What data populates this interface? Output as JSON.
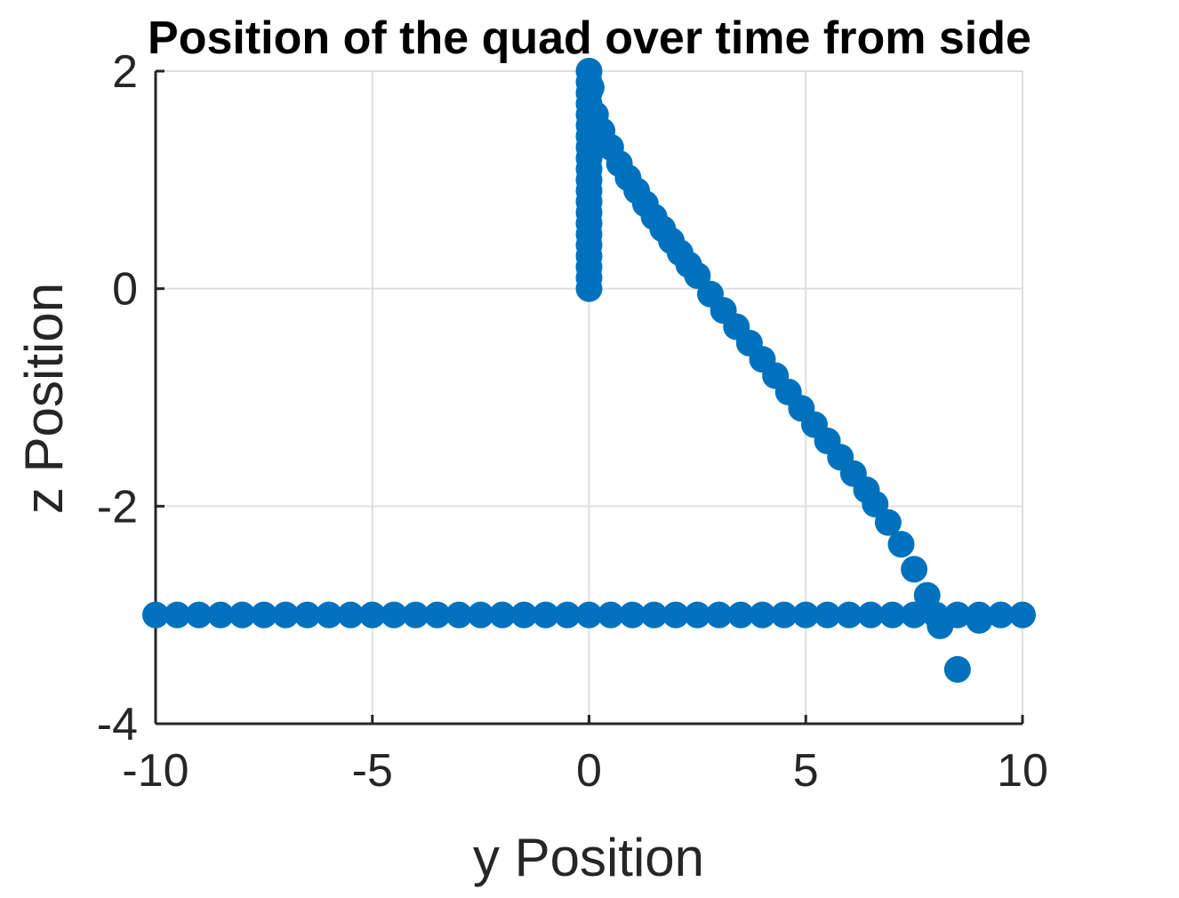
{
  "chart_data": {
    "type": "scatter",
    "title": "Position of the quad over time from side",
    "xlabel": "y Position",
    "ylabel": "z Position",
    "xlim": [
      -10,
      10
    ],
    "ylim": [
      -4,
      2
    ],
    "xticks": [
      -10,
      -5,
      0,
      5,
      10
    ],
    "yticks": [
      -4,
      -2,
      0,
      2
    ],
    "xtick_labels": [
      "-10",
      "-5",
      "0",
      "5",
      "10"
    ],
    "ytick_labels": [
      "-4",
      "-2",
      "0",
      "2"
    ],
    "grid": true,
    "marker_color": "#0072BD",
    "series": [
      {
        "x": [
          0,
          0,
          0,
          0,
          0,
          0,
          0,
          0,
          0,
          0,
          0,
          0,
          0,
          0,
          0,
          0,
          0,
          0,
          0,
          0,
          0,
          0.05,
          0.15,
          0.3,
          0.5,
          0.7,
          0.9,
          1.1,
          1.3,
          1.5,
          1.7,
          1.9,
          2.1,
          2.3,
          2.5,
          2.8,
          3.1,
          3.4,
          3.7,
          4.0,
          4.3,
          4.6,
          4.9,
          5.2,
          5.5,
          5.8,
          6.1,
          6.4,
          6.6,
          6.9,
          7.2,
          7.5,
          7.8,
          8.1,
          8.5,
          9.0,
          -10,
          -9.5,
          -9,
          -8.5,
          -8,
          -7.5,
          -7,
          -6.5,
          -6,
          -5.5,
          -5,
          -4.5,
          -4,
          -3.5,
          -3,
          -2.5,
          -2,
          -1.5,
          -1,
          -0.5,
          0,
          0.5,
          1,
          1.5,
          2,
          2.5,
          3,
          3.5,
          4,
          4.5,
          5,
          5.5,
          6,
          6.5,
          7,
          7.5,
          8,
          8.5,
          9,
          9.5,
          10
        ],
        "y": [
          0,
          0.1,
          0.2,
          0.3,
          0.4,
          0.5,
          0.6,
          0.7,
          0.8,
          0.9,
          1.0,
          1.1,
          1.2,
          1.3,
          1.4,
          1.5,
          1.6,
          1.7,
          1.8,
          1.9,
          2.0,
          1.85,
          1.6,
          1.45,
          1.3,
          1.15,
          1.02,
          0.9,
          0.78,
          0.66,
          0.55,
          0.44,
          0.33,
          0.22,
          0.12,
          -0.05,
          -0.2,
          -0.35,
          -0.5,
          -0.65,
          -0.8,
          -0.95,
          -1.1,
          -1.25,
          -1.4,
          -1.55,
          -1.7,
          -1.85,
          -1.98,
          -2.15,
          -2.35,
          -2.58,
          -2.82,
          -3.1,
          -3.5,
          -3.05,
          -3,
          -3,
          -3,
          -3,
          -3,
          -3,
          -3,
          -3,
          -3,
          -3,
          -3,
          -3,
          -3,
          -3,
          -3,
          -3,
          -3,
          -3,
          -3,
          -3,
          -3,
          -3,
          -3,
          -3,
          -3,
          -3,
          -3,
          -3,
          -3,
          -3,
          -3,
          -3,
          -3,
          -3,
          -3,
          -3,
          -3,
          -3,
          -3,
          -3,
          -3
        ]
      }
    ]
  }
}
